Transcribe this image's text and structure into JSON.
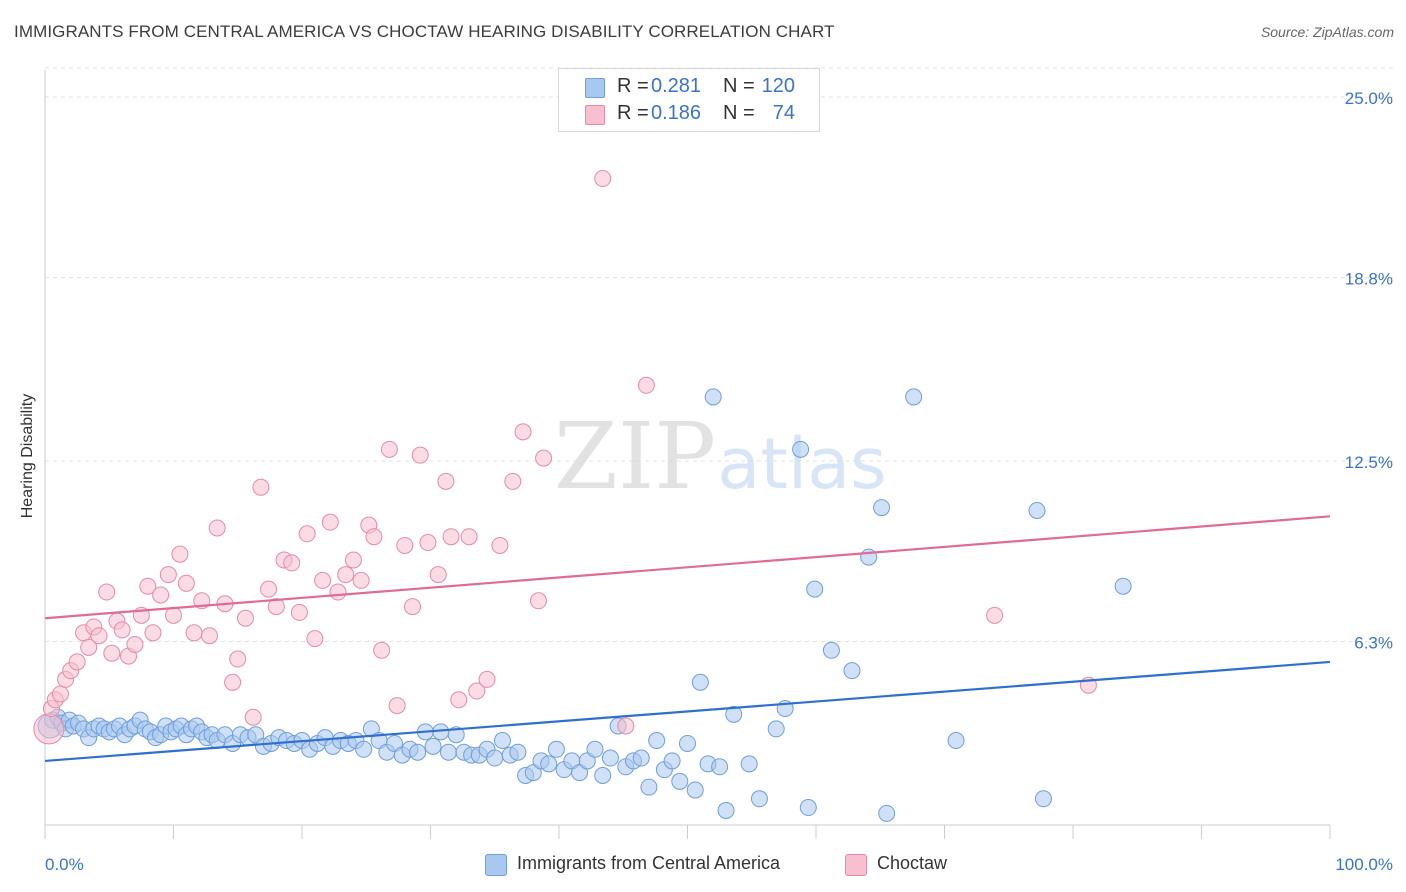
{
  "header": {
    "title": "IMMIGRANTS FROM CENTRAL AMERICA VS CHOCTAW HEARING DISABILITY CORRELATION CHART",
    "source": "Source: ZipAtlas.com"
  },
  "watermark": {
    "zip": "ZIP",
    "atlas": "atlas"
  },
  "legend": {
    "rows": [
      {
        "r_label": "R =",
        "r_value": "0.281",
        "n_label": "N =",
        "n_value": "120",
        "color": "#a9c8f0",
        "border": "#6f9ed8"
      },
      {
        "r_label": "R =",
        "r_value": "0.186",
        "n_label": "N =",
        "n_value": "74",
        "color": "#f7bfd0",
        "border": "#e58aa8"
      }
    ]
  },
  "chart_data": {
    "type": "scatter",
    "title": "IMMIGRANTS FROM CENTRAL AMERICA VS CHOCTAW HEARING DISABILITY CORRELATION CHART",
    "ylabel": "Hearing Disability",
    "xlabel": "",
    "xlim": [
      0,
      100
    ],
    "ylim": [
      0,
      26
    ],
    "x_tick_labels": [
      "0.0%",
      "100.0%"
    ],
    "y_ticks": [
      6.3,
      12.5,
      18.8,
      25.0
    ],
    "y_tick_labels": [
      "6.3%",
      "12.5%",
      "18.8%",
      "25.0%"
    ],
    "grid": "horizontal dashed",
    "legend_position": "top-center and bottom",
    "series": [
      {
        "name": "Immigrants from Central America",
        "color": "#a9c8f0",
        "edge": "#6f9ed8",
        "line_color": "#2f6fd0",
        "trend": {
          "x": [
            0,
            100
          ],
          "y": [
            2.2,
            5.6
          ]
        },
        "points": [
          [
            0.4,
            3.4
          ],
          [
            0.6,
            3.6
          ],
          [
            1.0,
            3.7
          ],
          [
            1.3,
            3.5
          ],
          [
            1.6,
            3.3
          ],
          [
            1.9,
            3.6
          ],
          [
            2.2,
            3.4
          ],
          [
            2.6,
            3.5
          ],
          [
            3.0,
            3.3
          ],
          [
            3.4,
            3.0
          ],
          [
            3.8,
            3.3
          ],
          [
            4.2,
            3.4
          ],
          [
            4.6,
            3.3
          ],
          [
            5.0,
            3.2
          ],
          [
            5.4,
            3.3
          ],
          [
            5.8,
            3.4
          ],
          [
            6.2,
            3.1
          ],
          [
            6.6,
            3.3
          ],
          [
            7.0,
            3.4
          ],
          [
            7.4,
            3.6
          ],
          [
            7.8,
            3.3
          ],
          [
            8.2,
            3.2
          ],
          [
            8.6,
            3.0
          ],
          [
            9.0,
            3.1
          ],
          [
            9.4,
            3.4
          ],
          [
            9.8,
            3.2
          ],
          [
            10.2,
            3.3
          ],
          [
            10.6,
            3.4
          ],
          [
            11.0,
            3.1
          ],
          [
            11.4,
            3.3
          ],
          [
            11.8,
            3.4
          ],
          [
            12.2,
            3.2
          ],
          [
            12.6,
            3.0
          ],
          [
            13.0,
            3.1
          ],
          [
            13.4,
            2.9
          ],
          [
            14.0,
            3.1
          ],
          [
            14.6,
            2.8
          ],
          [
            15.2,
            3.1
          ],
          [
            15.8,
            3.0
          ],
          [
            16.4,
            3.1
          ],
          [
            17.0,
            2.7
          ],
          [
            17.6,
            2.8
          ],
          [
            18.2,
            3.0
          ],
          [
            18.8,
            2.9
          ],
          [
            19.4,
            2.8
          ],
          [
            20.0,
            2.9
          ],
          [
            20.6,
            2.6
          ],
          [
            21.2,
            2.8
          ],
          [
            21.8,
            3.0
          ],
          [
            22.4,
            2.7
          ],
          [
            23.0,
            2.9
          ],
          [
            23.6,
            2.8
          ],
          [
            24.2,
            2.9
          ],
          [
            24.8,
            2.6
          ],
          [
            25.4,
            3.3
          ],
          [
            26.0,
            2.9
          ],
          [
            26.6,
            2.5
          ],
          [
            27.2,
            2.8
          ],
          [
            27.8,
            2.4
          ],
          [
            28.4,
            2.6
          ],
          [
            29.0,
            2.5
          ],
          [
            29.6,
            3.2
          ],
          [
            30.2,
            2.7
          ],
          [
            30.8,
            3.2
          ],
          [
            31.4,
            2.5
          ],
          [
            32.0,
            3.1
          ],
          [
            32.6,
            2.5
          ],
          [
            33.2,
            2.4
          ],
          [
            33.8,
            2.4
          ],
          [
            34.4,
            2.6
          ],
          [
            35.0,
            2.3
          ],
          [
            35.6,
            2.9
          ],
          [
            36.2,
            2.4
          ],
          [
            36.8,
            2.5
          ],
          [
            37.4,
            1.7
          ],
          [
            38.0,
            1.8
          ],
          [
            38.6,
            2.2
          ],
          [
            39.2,
            2.1
          ],
          [
            39.8,
            2.6
          ],
          [
            40.4,
            1.9
          ],
          [
            41.0,
            2.2
          ],
          [
            41.6,
            1.8
          ],
          [
            42.2,
            2.2
          ],
          [
            42.8,
            2.6
          ],
          [
            43.4,
            1.7
          ],
          [
            44.0,
            2.3
          ],
          [
            44.6,
            3.4
          ],
          [
            45.2,
            2.0
          ],
          [
            45.8,
            2.2
          ],
          [
            46.4,
            2.3
          ],
          [
            47.0,
            1.3
          ],
          [
            47.6,
            2.9
          ],
          [
            48.2,
            1.9
          ],
          [
            48.8,
            2.2
          ],
          [
            49.4,
            1.5
          ],
          [
            50.0,
            2.8
          ],
          [
            50.6,
            1.2
          ],
          [
            51.0,
            4.9
          ],
          [
            51.6,
            2.1
          ],
          [
            52.0,
            14.7
          ],
          [
            52.5,
            2.0
          ],
          [
            53.0,
            0.5
          ],
          [
            53.6,
            3.8
          ],
          [
            54.8,
            2.1
          ],
          [
            55.6,
            0.9
          ],
          [
            56.9,
            3.3
          ],
          [
            57.6,
            4.0
          ],
          [
            58.8,
            12.9
          ],
          [
            59.4,
            0.6
          ],
          [
            59.9,
            8.1
          ],
          [
            61.2,
            6.0
          ],
          [
            62.8,
            5.3
          ],
          [
            64.1,
            9.2
          ],
          [
            65.1,
            10.9
          ],
          [
            65.5,
            0.4
          ],
          [
            67.6,
            14.7
          ],
          [
            70.9,
            2.9
          ],
          [
            77.2,
            10.8
          ],
          [
            77.7,
            0.9
          ],
          [
            83.9,
            8.2
          ]
        ]
      },
      {
        "name": "Choctaw",
        "color": "#f7bfd0",
        "edge": "#e58aa8",
        "line_color": "#e06b96",
        "trend": {
          "x": [
            0,
            100
          ],
          "y": [
            7.1,
            10.6
          ]
        },
        "points": [
          [
            0.3,
            3.3
          ],
          [
            0.5,
            4.0
          ],
          [
            0.8,
            4.3
          ],
          [
            1.2,
            4.5
          ],
          [
            1.6,
            5.0
          ],
          [
            2.0,
            5.3
          ],
          [
            2.5,
            5.6
          ],
          [
            3.0,
            6.6
          ],
          [
            3.4,
            6.1
          ],
          [
            3.8,
            6.8
          ],
          [
            4.2,
            6.5
          ],
          [
            4.8,
            8.0
          ],
          [
            5.2,
            5.9
          ],
          [
            5.6,
            7.0
          ],
          [
            6.0,
            6.7
          ],
          [
            6.5,
            5.8
          ],
          [
            7.0,
            6.2
          ],
          [
            7.5,
            7.2
          ],
          [
            8.0,
            8.2
          ],
          [
            8.4,
            6.6
          ],
          [
            9.0,
            7.9
          ],
          [
            9.6,
            8.6
          ],
          [
            10.0,
            7.2
          ],
          [
            10.5,
            9.3
          ],
          [
            11.0,
            8.3
          ],
          [
            11.6,
            6.6
          ],
          [
            12.2,
            7.7
          ],
          [
            12.8,
            6.5
          ],
          [
            13.4,
            10.2
          ],
          [
            14.0,
            7.6
          ],
          [
            14.6,
            4.9
          ],
          [
            15.0,
            5.7
          ],
          [
            15.6,
            7.1
          ],
          [
            16.2,
            3.7
          ],
          [
            16.8,
            11.6
          ],
          [
            17.4,
            8.1
          ],
          [
            18.0,
            7.5
          ],
          [
            18.6,
            9.1
          ],
          [
            19.2,
            9.0
          ],
          [
            19.8,
            7.3
          ],
          [
            20.4,
            10.0
          ],
          [
            21.0,
            6.4
          ],
          [
            21.6,
            8.4
          ],
          [
            22.2,
            10.4
          ],
          [
            22.8,
            8.0
          ],
          [
            23.4,
            8.6
          ],
          [
            24.0,
            9.1
          ],
          [
            24.6,
            8.4
          ],
          [
            25.2,
            10.3
          ],
          [
            25.6,
            9.9
          ],
          [
            26.2,
            6.0
          ],
          [
            26.8,
            12.9
          ],
          [
            27.4,
            4.1
          ],
          [
            28.0,
            9.6
          ],
          [
            28.6,
            7.5
          ],
          [
            29.2,
            12.7
          ],
          [
            29.8,
            9.7
          ],
          [
            30.6,
            8.6
          ],
          [
            31.2,
            11.8
          ],
          [
            31.6,
            9.9
          ],
          [
            32.2,
            4.3
          ],
          [
            33.0,
            9.9
          ],
          [
            33.6,
            4.6
          ],
          [
            34.4,
            5.0
          ],
          [
            35.4,
            9.6
          ],
          [
            36.4,
            11.8
          ],
          [
            37.2,
            13.5
          ],
          [
            38.4,
            7.7
          ],
          [
            38.8,
            12.6
          ],
          [
            43.4,
            22.2
          ],
          [
            45.2,
            3.4
          ],
          [
            46.8,
            15.1
          ],
          [
            73.9,
            7.2
          ],
          [
            81.2,
            4.8
          ]
        ]
      }
    ]
  }
}
